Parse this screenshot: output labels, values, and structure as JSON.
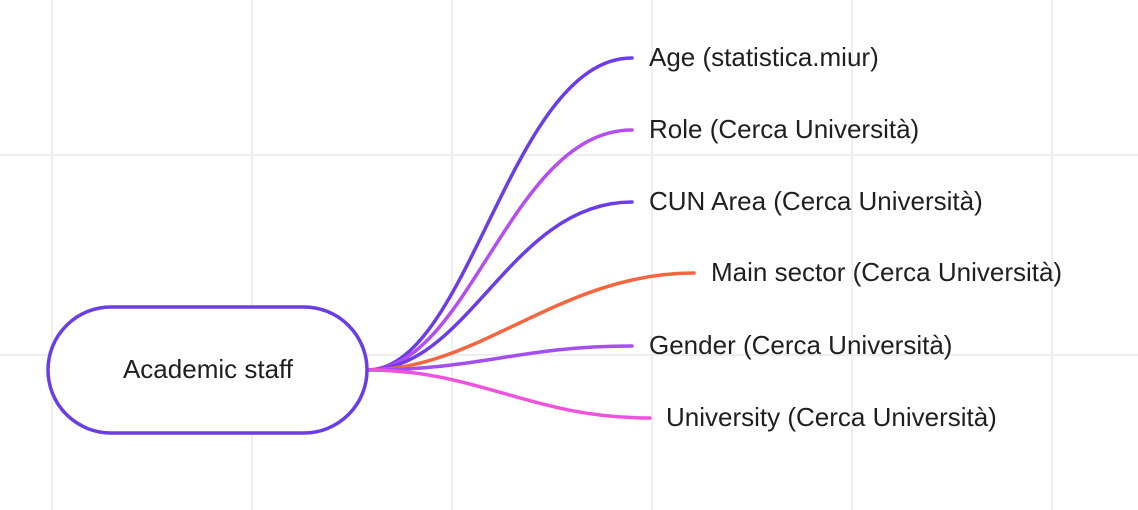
{
  "root": {
    "label": "Academic staff"
  },
  "branches": [
    {
      "label": "Age (statistica.miur)"
    },
    {
      "label": "Role (Cerca Università)"
    },
    {
      "label": "CUN Area (Cerca Università)"
    },
    {
      "label": "Main sector (Cerca Università)"
    },
    {
      "label": "Gender (Cerca Università)"
    },
    {
      "label": "University (Cerca Università)"
    }
  ]
}
